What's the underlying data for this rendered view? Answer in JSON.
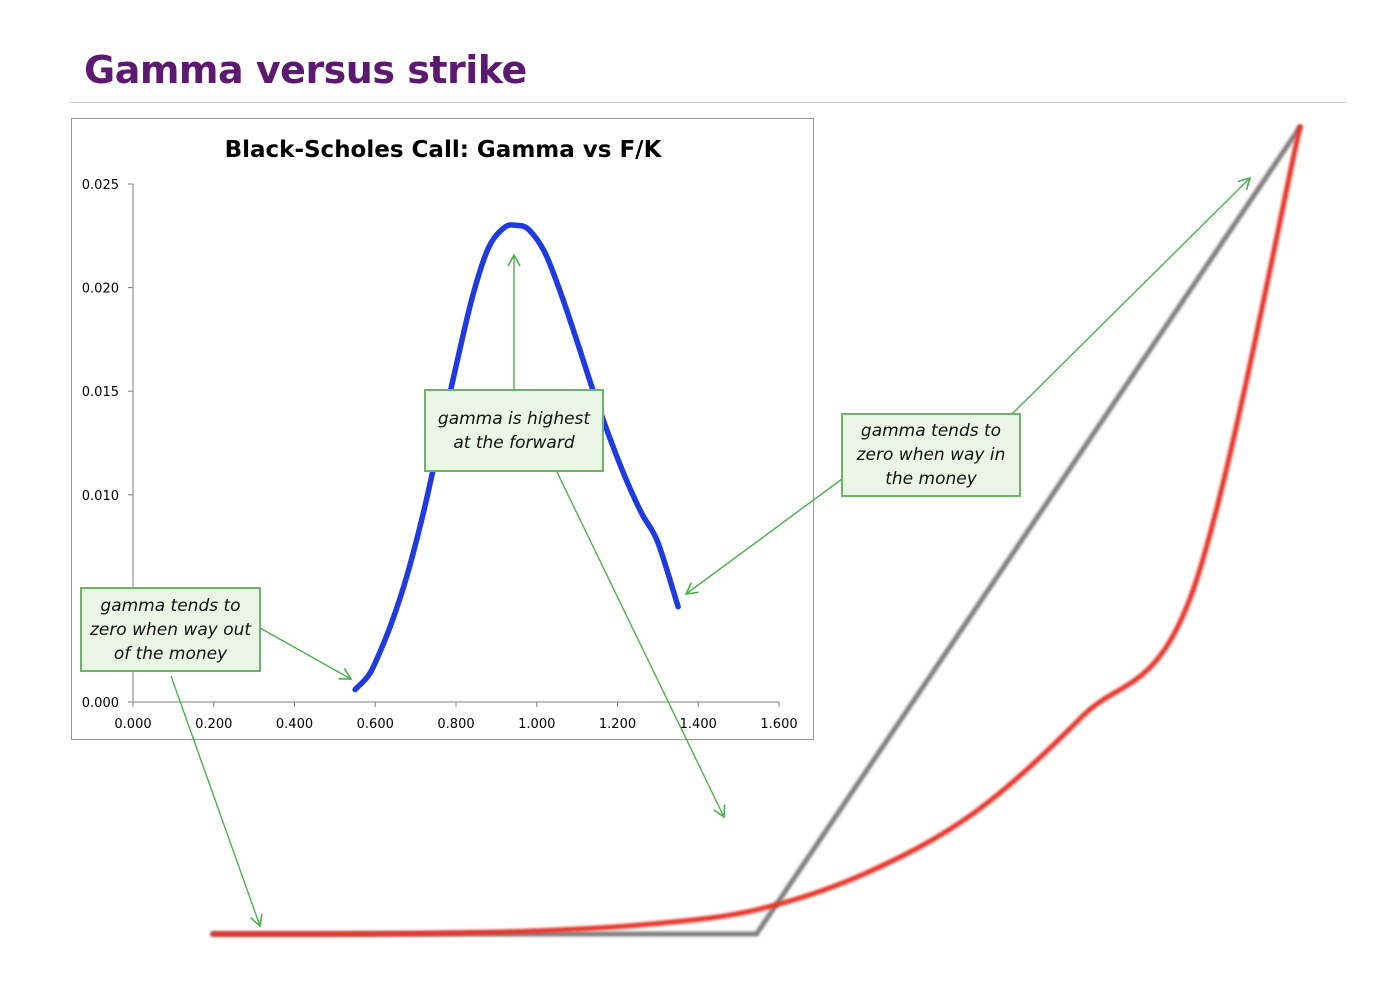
{
  "slide": {
    "title": "Gamma versus strike"
  },
  "chart_data": [
    {
      "type": "line",
      "title": "Black-Scholes Call:  Gamma vs F/K",
      "xlabel": "",
      "ylabel": "",
      "xlim": [
        0,
        1.6
      ],
      "ylim": [
        0,
        0.025
      ],
      "x_ticks": [
        "0.000",
        "0.200",
        "0.400",
        "0.600",
        "0.800",
        "1.000",
        "1.200",
        "1.400",
        "1.600"
      ],
      "y_ticks": [
        "0.000",
        "0.010",
        "0.015",
        "0.020",
        "0.025"
      ],
      "grid": false,
      "legend": "none",
      "series": [
        {
          "color": "#1f3be0",
          "x": [
            0.55,
            0.58,
            0.6,
            0.64,
            0.68,
            0.72,
            0.76,
            0.8,
            0.84,
            0.88,
            0.92,
            0.95,
            0.98,
            1.02,
            1.06,
            1.1,
            1.14,
            1.18,
            1.22,
            1.26,
            1.3,
            1.35
          ],
          "y": [
            0.0006,
            0.0012,
            0.0019,
            0.0038,
            0.0062,
            0.0092,
            0.0127,
            0.0162,
            0.0195,
            0.0219,
            0.0229,
            0.023,
            0.0228,
            0.0217,
            0.0197,
            0.0174,
            0.015,
            0.0128,
            0.0108,
            0.0091,
            0.0077,
            0.0046
          ]
        }
      ]
    },
    {
      "type": "line",
      "description_of_marks": "schematic call price vs strike; red = option value, grey = intrinsic payoff",
      "series": [
        {
          "color": "#e8342a",
          "x": [
            0,
            0.1,
            0.2,
            0.3,
            0.4,
            0.5,
            0.6,
            0.7,
            0.8,
            0.9,
            1.0
          ],
          "y": [
            0,
            0.0,
            0.001,
            0.004,
            0.012,
            0.03,
            0.075,
            0.15,
            0.27,
            0.42,
            1.0
          ]
        },
        {
          "color": "#808080",
          "x": [
            0,
            0.5,
            1.0
          ],
          "y": [
            0,
            0,
            1.0
          ]
        }
      ]
    }
  ],
  "callouts": {
    "highest": "gamma is highest\nat the forward",
    "itm": "gamma tends to\nzero when way in\nthe money",
    "otm": "gamma tends to\nzero when way out\nof the money"
  },
  "colors": {
    "title": "#5b1a6f",
    "callout_fill": "#ebf5e6",
    "callout_border": "#6db36a",
    "arrow": "#4caf50"
  }
}
